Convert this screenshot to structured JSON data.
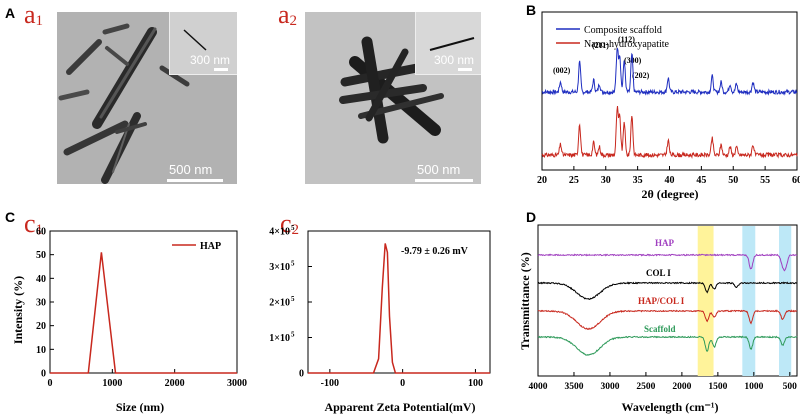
{
  "panels": {
    "A": "A",
    "B": "B",
    "C": "C",
    "D": "D",
    "a1": {
      "letter": "a",
      "index": "1",
      "main_scale": "500 nm",
      "inset_scale": "300 nm"
    },
    "a2": {
      "letter": "a",
      "index": "2",
      "main_scale": "500 nm",
      "inset_scale": "300 nm"
    },
    "c1": {
      "letter": "c",
      "index": "1"
    },
    "c2": {
      "letter": "c",
      "index": "2"
    }
  },
  "colors": {
    "red": "#c8281e",
    "blue": "#1f2ec0",
    "black": "#000000",
    "purple": "#a040c0",
    "green": "#2e9a5a",
    "yellow": "#fff39a",
    "cyan": "#bde8f7"
  },
  "chart_data": [
    {
      "id": "B",
      "type": "line",
      "xlabel": "2θ (degree)",
      "ylabel": "",
      "xlim": [
        20,
        60
      ],
      "xticks": [
        "20",
        "25",
        "30",
        "35",
        "40",
        "45",
        "50",
        "55",
        "60"
      ],
      "legend": [
        "Composite scaffold",
        "Nano-hydroxyapatite"
      ],
      "annotations": [
        "(002)",
        "(211)",
        "(112)",
        "(300)",
        "(202)"
      ],
      "series": [
        {
          "name": "Composite scaffold",
          "peaks_2theta": [
            22.9,
            25.9,
            28.1,
            29.0,
            31.8,
            32.2,
            32.9,
            34.1,
            39.8,
            46.7,
            48.1,
            49.5,
            50.5,
            53.1
          ]
        },
        {
          "name": "Nano-hydroxyapatite",
          "peaks_2theta": [
            22.9,
            25.9,
            28.1,
            29.0,
            31.8,
            32.2,
            32.9,
            34.1,
            39.8,
            46.7,
            48.1,
            49.5,
            50.5,
            53.1
          ]
        }
      ]
    },
    {
      "id": "c1",
      "type": "line",
      "xlabel": "Size (nm)",
      "ylabel": "Intensity (%)",
      "xlim": [
        0,
        3000
      ],
      "ylim": [
        0,
        60
      ],
      "xticks": [
        "0",
        "1000",
        "2000",
        "3000"
      ],
      "yticks": [
        "0",
        "10",
        "20",
        "30",
        "40",
        "50",
        "60"
      ],
      "legend": [
        "HAP"
      ],
      "series": [
        {
          "name": "HAP",
          "x": [
            0,
            615,
            825,
            1050,
            1100,
            3000
          ],
          "y": [
            0,
            0,
            51,
            0,
            0,
            0
          ]
        }
      ]
    },
    {
      "id": "c2",
      "type": "line",
      "xlabel": "Apparent Zeta Potential(mV)",
      "ylabel": "",
      "xlim": [
        -130,
        120
      ],
      "ylim": [
        0,
        400000
      ],
      "xticks": [
        "-100",
        "0",
        "100"
      ],
      "ytick_base": "10",
      "ytick_mult": [
        "0",
        "1",
        "2",
        "3",
        "4"
      ],
      "ytick_exp": "5",
      "annotation": "-9.79 ± 0.26 mV",
      "series": [
        {
          "name": "zeta",
          "x": [
            -130,
            -40,
            -33,
            -28,
            -24,
            -21,
            -18,
            -14,
            -10,
            120
          ],
          "y": [
            0,
            0,
            40000,
            240000,
            365000,
            340000,
            160000,
            30000,
            0,
            0
          ]
        }
      ]
    },
    {
      "id": "D",
      "type": "line",
      "xlabel": "Wavelength (cm⁻¹)",
      "ylabel": "Transmittance (%)",
      "xlim": [
        4000,
        400
      ],
      "xticks": [
        "4000",
        "3500",
        "3000",
        "2500",
        "2000",
        "1500",
        "1000",
        "500"
      ],
      "labels": [
        "HAP",
        "COL I",
        "HAP/COL I",
        "Scaffold"
      ],
      "highlight_bands_cm1": [
        [
          1780,
          1560
        ],
        [
          1160,
          980
        ],
        [
          650,
          480
        ]
      ],
      "series": [
        {
          "name": "HAP",
          "dips_cm1": [
            1040,
            600,
            560
          ]
        },
        {
          "name": "COL I",
          "dips_cm1": [
            3300,
            1650,
            1550,
            1240
          ]
        },
        {
          "name": "HAP/COL I",
          "dips_cm1": [
            3300,
            1650,
            1550,
            1040,
            600
          ]
        },
        {
          "name": "Scaffold",
          "dips_cm1": [
            3300,
            1650,
            1550,
            1040,
            600
          ]
        }
      ]
    }
  ]
}
